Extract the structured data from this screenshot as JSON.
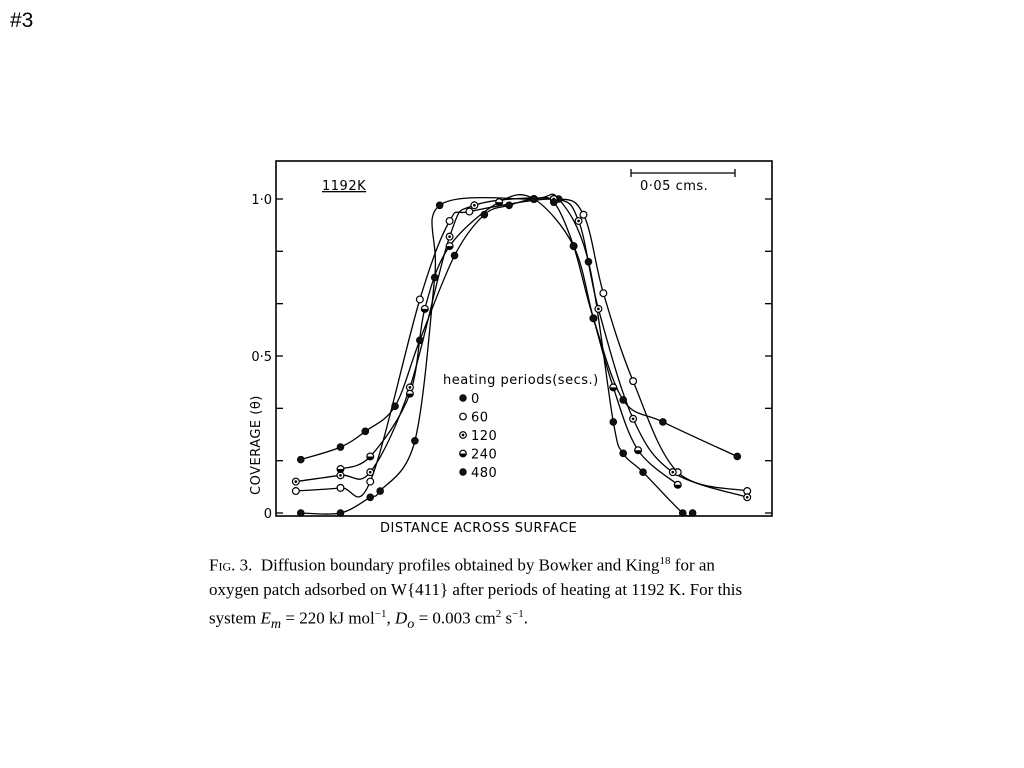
{
  "slide": {
    "number": "#3"
  },
  "chart_data": {
    "type": "line",
    "title": "",
    "panel_label": "1192K",
    "scale_bar_label": "0·05 cms.",
    "xlabel": "DISTANCE ACROSS SURFACE",
    "ylabel": "COVERAGE (θ)",
    "x_units": "arbitrary (scale bar 0·05 cms)",
    "xlim": [
      0,
      100
    ],
    "ylim": [
      0,
      1.05
    ],
    "yticks": [
      {
        "value": 0,
        "label": "0"
      },
      {
        "value": 0.5,
        "label": "0·5"
      },
      {
        "value": 1.0,
        "label": "1·0"
      }
    ],
    "grid": false,
    "legend": {
      "title": "heating periods(secs.)",
      "placement": "center"
    },
    "series": [
      {
        "name": "0",
        "marker": "filled-circle",
        "x": [
          5,
          13,
          19,
          21,
          28,
          32,
          33,
          52,
          57,
          63,
          68,
          70,
          74,
          82,
          84
        ],
        "y": [
          0.0,
          0.0,
          0.05,
          0.07,
          0.23,
          0.75,
          0.98,
          1.0,
          1.0,
          0.8,
          0.29,
          0.19,
          0.13,
          0.0,
          0.0
        ]
      },
      {
        "name": "60",
        "marker": "open-circle",
        "x": [
          4,
          13,
          19,
          29,
          35,
          39,
          56,
          62,
          66,
          72,
          81,
          95
        ],
        "y": [
          0.07,
          0.08,
          0.1,
          0.68,
          0.93,
          0.96,
          1.0,
          0.95,
          0.7,
          0.42,
          0.13,
          0.07
        ]
      },
      {
        "name": "120",
        "marker": "dotted-circle",
        "x": [
          4,
          13,
          19,
          27,
          35,
          40,
          56,
          61,
          65,
          72,
          80,
          95
        ],
        "y": [
          0.1,
          0.12,
          0.13,
          0.4,
          0.88,
          0.98,
          1.0,
          0.93,
          0.65,
          0.3,
          0.13,
          0.05
        ]
      },
      {
        "name": "240",
        "marker": "half-circle",
        "x": [
          13,
          19,
          27,
          30,
          35,
          45,
          52,
          60,
          64,
          68,
          73,
          81
        ],
        "y": [
          0.14,
          0.18,
          0.38,
          0.65,
          0.85,
          0.99,
          1.0,
          0.85,
          0.62,
          0.4,
          0.2,
          0.09
        ]
      },
      {
        "name": "480",
        "marker": "dense-circle",
        "x": [
          5,
          13,
          18,
          24,
          29,
          36,
          42,
          47,
          52,
          56,
          60,
          64,
          70,
          78,
          93
        ],
        "y": [
          0.17,
          0.21,
          0.26,
          0.34,
          0.55,
          0.82,
          0.95,
          0.98,
          1.0,
          0.99,
          0.85,
          0.62,
          0.36,
          0.29,
          0.18
        ]
      }
    ]
  },
  "caption": {
    "fig_label": "Fig. 3.",
    "line1": "Diffusion boundary profiles obtained by Bowker and King",
    "ref": "18",
    "line1_end": " for an",
    "line2": "oxygen patch adsorbed on W{411} after periods of heating at 1192 K. For this",
    "line3_start": "system ",
    "em_symbol": "E",
    "em_sub": "m",
    "em_value": " = 220 kJ mol",
    "em_exp": "−1",
    "do_sep": ", ",
    "do_symbol": "D",
    "do_sub": "o",
    "do_value": " = 0.003 cm",
    "do_exp1": "2",
    "do_unit2": " s",
    "do_exp2": "−1",
    "end": "."
  }
}
